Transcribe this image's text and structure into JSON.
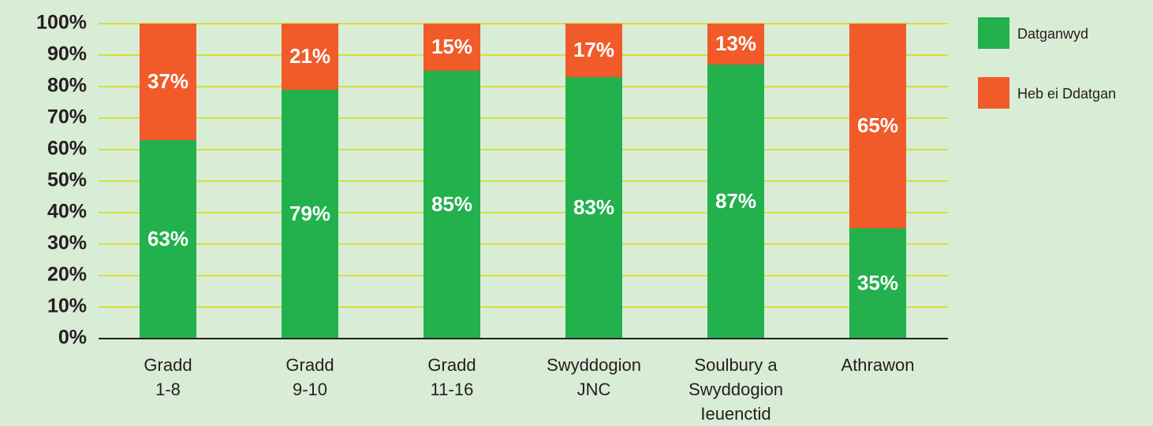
{
  "chart_data": {
    "type": "stacked_bar",
    "categories": [
      [
        "Gradd",
        "1-8"
      ],
      [
        "Gradd",
        "9-10"
      ],
      [
        "Gradd",
        "11-16"
      ],
      [
        "Swyddogion",
        "JNC"
      ],
      [
        "Soulbury a",
        "Swyddogion",
        "Ieuenctid"
      ],
      [
        "Athrawon"
      ]
    ],
    "series": [
      {
        "name": "Datganwyd",
        "color": "#22b14c",
        "values": [
          63,
          79,
          85,
          83,
          87,
          35
        ],
        "value_labels": [
          "63%",
          "79%",
          "85%",
          "83%",
          "87%",
          "35%"
        ]
      },
      {
        "name": "Heb ei Ddatgan",
        "color": "#f15a29",
        "values": [
          37,
          21,
          15,
          17,
          13,
          65
        ],
        "value_labels": [
          "37%",
          "21%",
          "15%",
          "17%",
          "13%",
          "65%"
        ]
      }
    ],
    "ylim": [
      0,
      100
    ],
    "yticks": [
      {
        "value": 0,
        "label": "0%"
      },
      {
        "value": 10,
        "label": "10%"
      },
      {
        "value": 20,
        "label": "20%"
      },
      {
        "value": 30,
        "label": "30%"
      },
      {
        "value": 40,
        "label": "40%"
      },
      {
        "value": 50,
        "label": "50%"
      },
      {
        "value": 60,
        "label": "60%"
      },
      {
        "value": 70,
        "label": "70%"
      },
      {
        "value": 80,
        "label": "80%"
      },
      {
        "value": 90,
        "label": "90%"
      },
      {
        "value": 100,
        "label": "100%"
      }
    ],
    "grid": true,
    "legend": "right"
  }
}
